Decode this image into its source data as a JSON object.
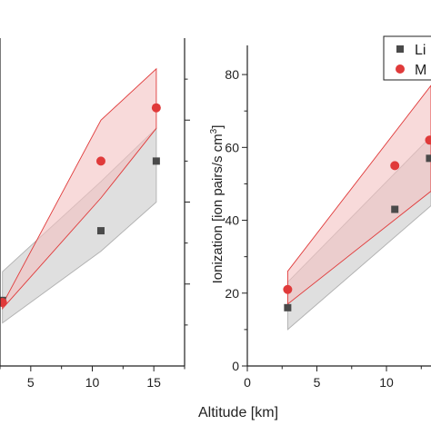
{
  "figure": {
    "shared_xlabel": "Altitude [km]"
  },
  "colors": {
    "liberation_series": "#4a4a4a",
    "m_series": "#e03a3a",
    "gray_band": "#d9d9d9",
    "red_band": "#f4c2c2",
    "axis": "#222222"
  },
  "chart_data": [
    {
      "type": "scatter",
      "panel": "left",
      "x_ticks": [
        "5",
        "10",
        "15"
      ],
      "xlim": [
        2.5,
        17.5
      ],
      "ylim": [
        0,
        80
      ],
      "series": [
        {
          "marker": "square",
          "x": [
            2.7,
            10.7,
            15.2
          ],
          "y": [
            16,
            33,
            50
          ]
        },
        {
          "marker": "circle",
          "x": [
            2.7,
            10.7,
            15.2
          ],
          "y": [
            15.5,
            50,
            63
          ]
        }
      ],
      "bands": [
        {
          "color": "gray",
          "x": [
            2.7,
            10.7,
            15.2
          ],
          "lower": [
            10.5,
            28,
            40
          ],
          "upper": [
            23,
            45,
            58
          ]
        },
        {
          "color": "red",
          "x": [
            2.7,
            10.7,
            15.2
          ],
          "lower": [
            14,
            41,
            58
          ],
          "upper": [
            15,
            60,
            72.5
          ]
        }
      ]
    },
    {
      "type": "scatter",
      "panel": "right",
      "xlabel": "Altitude [km]",
      "ylabel": "Ionization [ion pairs/s cm3]",
      "ylabel_main": "Ionization [ion pairs/s cm",
      "ylabel_sup": "3",
      "ylabel_close": "]",
      "x_ticks": [
        "0",
        "5",
        "10"
      ],
      "y_ticks": [
        "0",
        "20",
        "40",
        "60",
        "80"
      ],
      "xlim": [
        0,
        13.2
      ],
      "ylim": [
        0,
        88
      ],
      "legend": {
        "position": "top-right",
        "entries": [
          {
            "marker": "square",
            "label": "Li"
          },
          {
            "marker": "circle",
            "label": "M"
          }
        ]
      },
      "series": [
        {
          "marker": "square",
          "x": [
            2.9,
            10.6,
            13.1
          ],
          "y": [
            16,
            43,
            57
          ]
        },
        {
          "marker": "circle",
          "x": [
            2.9,
            10.6,
            13.1
          ],
          "y": [
            21,
            55,
            62
          ]
        }
      ],
      "bands": [
        {
          "color": "gray",
          "x": [
            2.9,
            13.2
          ],
          "lower": [
            10,
            44
          ],
          "upper": [
            23,
            63
          ]
        },
        {
          "color": "red",
          "x": [
            2.9,
            13.2
          ],
          "lower": [
            17,
            48
          ],
          "upper": [
            26,
            77
          ]
        }
      ]
    }
  ]
}
